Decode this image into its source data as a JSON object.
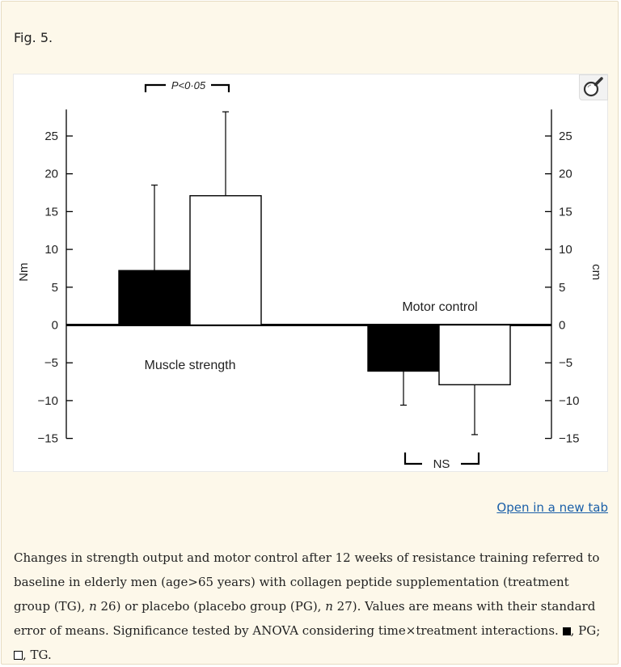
{
  "figure": {
    "label": "Fig. 5.",
    "open_link": "Open in a new tab",
    "zoom_icon": "magnifier-icon"
  },
  "caption": {
    "part1": "Changes in strength output and motor control after 12 weeks of resistance training referred to baseline in elderly men (age>65 years) with collagen peptide supplementation (treatment group (TG), ",
    "n1_label": "n",
    "n1_value": " 26) or placebo (placebo group (PG), ",
    "n2_label": "n",
    "n2_value": " 27). Values are means with their standard error of means. Significance tested by ANOVA considering time×treatment interactions. ",
    "pg_legend": ", PG; ",
    "tg_legend": ", TG."
  },
  "chart_data": {
    "type": "bar",
    "left_axis": {
      "label": "Nm",
      "ticks": [
        "25",
        "20",
        "15",
        "10",
        "5",
        "0",
        "−5",
        "−10",
        "−15"
      ],
      "tick_values": [
        25,
        20,
        15,
        10,
        5,
        0,
        -5,
        -10,
        -15
      ],
      "range": [
        -15,
        28
      ]
    },
    "right_axis": {
      "label": "cm",
      "ticks": [
        "25",
        "20",
        "15",
        "10",
        "5",
        "0",
        "−5",
        "−10",
        "−15"
      ],
      "tick_values": [
        25,
        20,
        15,
        10,
        5,
        0,
        -5,
        -10,
        -15
      ]
    },
    "groups": [
      {
        "name": "Muscle strength",
        "pg": 7.2,
        "pg_err": 18.5,
        "tg": 17.1,
        "tg_err": 28.2,
        "significance": "P<0·05"
      },
      {
        "name": "Motor control",
        "pg": -6.1,
        "pg_err": -10.6,
        "tg": -7.9,
        "tg_err": -14.5,
        "significance": "NS"
      }
    ],
    "legend": [
      {
        "name": "PG",
        "fill": "#000000"
      },
      {
        "name": "TG",
        "fill": "#ffffff"
      }
    ]
  }
}
